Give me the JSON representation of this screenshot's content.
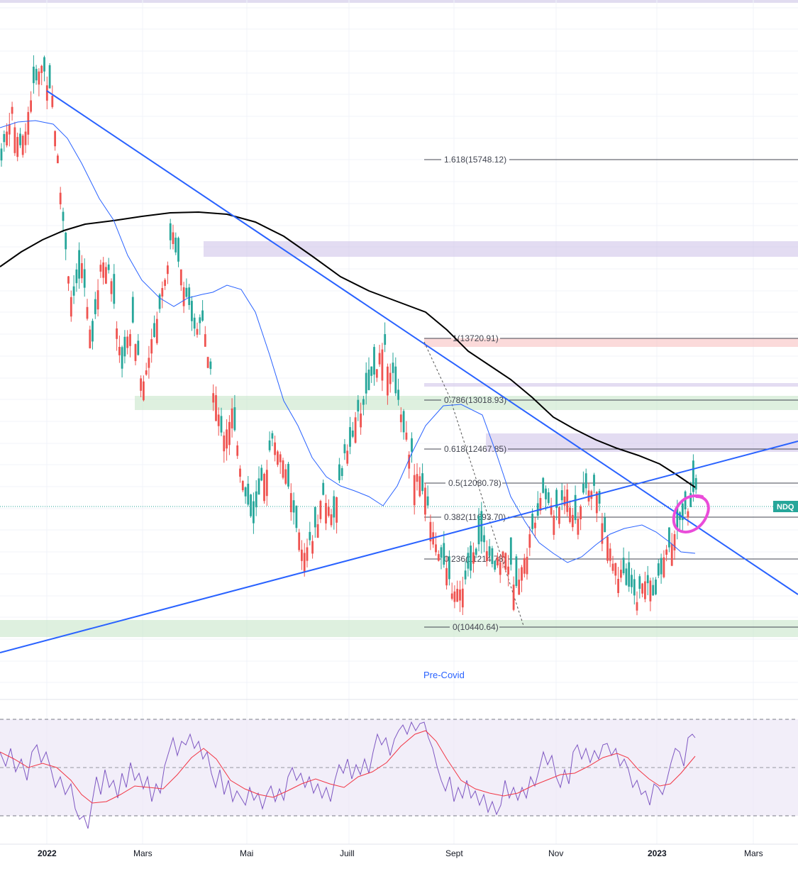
{
  "chart_data": {
    "type": "candlestick",
    "symbol": "NDQ",
    "x_tick_labels": [
      "2022",
      "Mars",
      "Mai",
      "Juill",
      "Sept",
      "Nov",
      "2023",
      "Mars"
    ],
    "fibonacci": [
      {
        "ratio": "1.618",
        "value": 15748.12,
        "label": "1.618(15748.12)"
      },
      {
        "ratio": "1",
        "value": 13720.91,
        "label": "1(13720.91)"
      },
      {
        "ratio": "0.786",
        "value": 13018.93,
        "label": "0.786(13018.93)"
      },
      {
        "ratio": "0.618",
        "value": 12467.85,
        "label": "0.618(12467.85)"
      },
      {
        "ratio": "0.5",
        "value": 12080.78,
        "label": "0.5(12080.78)"
      },
      {
        "ratio": "0.382",
        "value": 11693.7,
        "label": "0.382(11693.70)"
      },
      {
        "ratio": "0.236",
        "value": 11214.78,
        "label": "0.236(11214.78)"
      },
      {
        "ratio": "0",
        "value": 10440.64,
        "label": "0(10440.64)"
      }
    ],
    "annotations": [
      "Pre-Covid"
    ],
    "price_scale_px_per_unit": 0.0003,
    "ohlc_trace": [
      [
        15800,
        16200,
        16350,
        16050
      ],
      [
        16300,
        15900,
        16400,
        15700
      ],
      [
        15900,
        16500,
        16600,
        15850
      ],
      [
        16500,
        16850,
        16950,
        16400
      ],
      [
        16800,
        16600,
        16950,
        16500
      ],
      [
        16550,
        15200,
        16600,
        15000
      ],
      [
        15200,
        14100,
        15300,
        13900
      ],
      [
        14100,
        14500,
        14800,
        14050
      ],
      [
        14500,
        13700,
        14700,
        13500
      ],
      [
        13700,
        14700,
        14900,
        13600
      ],
      [
        14700,
        14300,
        14950,
        14100
      ],
      [
        14300,
        13400,
        14400,
        13300
      ],
      [
        13400,
        13950,
        14150,
        13250
      ],
      [
        13950,
        13150,
        14050,
        12950
      ],
      [
        13150,
        13700,
        13950,
        13050
      ],
      [
        13700,
        14250,
        14350,
        13650
      ],
      [
        14300,
        14900,
        15050,
        14200
      ],
      [
        14900,
        14450,
        15000,
        14300
      ],
      [
        14450,
        13800,
        14550,
        13700
      ],
      [
        13800,
        13900,
        14150,
        13500
      ],
      [
        13900,
        13200,
        14000,
        13100
      ],
      [
        13200,
        12600,
        13250,
        12450
      ],
      [
        12600,
        12900,
        13100,
        12500
      ],
      [
        12900,
        12050,
        12950,
        11900
      ],
      [
        12050,
        11650,
        12150,
        11500
      ],
      [
        11650,
        12100,
        12300,
        11550
      ],
      [
        12100,
        12600,
        12700,
        12050
      ],
      [
        12600,
        12300,
        12800,
        12200
      ],
      [
        12300,
        11800,
        12400,
        11650
      ],
      [
        11800,
        11200,
        11900,
        11050
      ],
      [
        11200,
        11450,
        11700,
        11100
      ],
      [
        11450,
        11950,
        12050,
        11350
      ],
      [
        11950,
        11700,
        12150,
        11550
      ],
      [
        11700,
        12300,
        12450,
        11650
      ],
      [
        12300,
        12700,
        12800,
        12200
      ],
      [
        12700,
        13000,
        13150,
        12600
      ],
      [
        13000,
        13350,
        13450,
        12950
      ],
      [
        13350,
        13600,
        13720,
        13250
      ],
      [
        13600,
        13250,
        13700,
        13150
      ],
      [
        13250,
        12700,
        13300,
        12550
      ],
      [
        12700,
        12250,
        12750,
        12100
      ],
      [
        12250,
        12000,
        12400,
        11900
      ],
      [
        12000,
        11500,
        12100,
        11400
      ],
      [
        11500,
        11100,
        11600,
        10950
      ],
      [
        11100,
        10800,
        11250,
        10700
      ],
      [
        10800,
        10900,
        11100,
        10440
      ],
      [
        10900,
        11300,
        11550,
        10850
      ],
      [
        11300,
        11450,
        11700,
        11200
      ],
      [
        11450,
        11100,
        11500,
        10950
      ],
      [
        11100,
        11300,
        11450,
        11000
      ],
      [
        11300,
        10950,
        11400,
        10850
      ],
      [
        10950,
        11200,
        11350,
        10750
      ],
      [
        11200,
        11700,
        11800,
        11150
      ],
      [
        11700,
        11950,
        12050,
        11650
      ],
      [
        11950,
        11700,
        12050,
        11600
      ],
      [
        11700,
        12000,
        12100,
        11650
      ],
      [
        12000,
        11650,
        12150,
        11550
      ],
      [
        11650,
        11950,
        12100,
        11600
      ],
      [
        11950,
        12050,
        12150,
        11850
      ],
      [
        12050,
        11500,
        12100,
        11400
      ],
      [
        11500,
        11100,
        11550,
        10950
      ],
      [
        11100,
        10950,
        11200,
        10800
      ],
      [
        10950,
        10750,
        11050,
        10650
      ],
      [
        10750,
        10950,
        11100,
        10650
      ],
      [
        10950,
        10850,
        11050,
        10700
      ],
      [
        10850,
        11250,
        11350,
        10800
      ],
      [
        11250,
        11500,
        11600,
        11200
      ],
      [
        11500,
        11750,
        11950,
        11450
      ],
      [
        11750,
        12000,
        12100,
        11700
      ],
      [
        12000,
        11850,
        12100,
        11800
      ]
    ]
  }
}
